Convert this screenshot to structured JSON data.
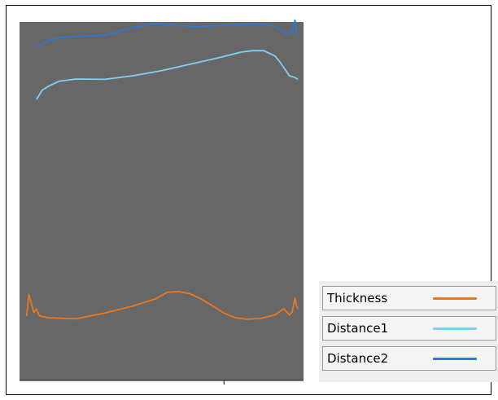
{
  "chart_data": {
    "type": "line",
    "title": "",
    "xlabel": "",
    "ylabel": "",
    "xlim": [
      0,
      100
    ],
    "ylim": [
      0,
      100
    ],
    "grid": false,
    "background": "#676767",
    "legend_position": "bottom-right, outside plot",
    "series": [
      {
        "name": "Thickness",
        "color": "#e87722",
        "x": [
          2.5,
          3.3,
          5,
          6,
          7,
          10,
          20,
          30,
          40,
          48,
          52,
          56,
          60,
          64,
          68,
          72,
          76,
          80,
          85,
          90,
          93,
          95,
          96,
          97,
          97.5,
          98
        ],
        "y": [
          18,
          24,
          19,
          20,
          18,
          17.5,
          17.2,
          18.8,
          20.8,
          22.8,
          24.6,
          24.8,
          24.2,
          22.7,
          20.8,
          18.8,
          17.5,
          17.1,
          17.3,
          18.3,
          20.0,
          18.3,
          19,
          23,
          21,
          20
        ]
      },
      {
        "name": "Distance1",
        "color": "#7fd0f2",
        "x": [
          6,
          8,
          10,
          14,
          20,
          30,
          40,
          50,
          60,
          70,
          78,
          82,
          86,
          90,
          92,
          95,
          97,
          98
        ],
        "y": [
          78.4,
          81.0,
          82.0,
          83.5,
          84.1,
          84.0,
          85.0,
          86.4,
          88.2,
          90.0,
          91.6,
          92.0,
          92.0,
          90.5,
          88.5,
          85.0,
          84.5,
          84.0
        ]
      },
      {
        "name": "Distance2",
        "color": "#2e78d6",
        "x": [
          6,
          8,
          10,
          14,
          20,
          30,
          40,
          48,
          52,
          56,
          62,
          70,
          80,
          86,
          90,
          92,
          94,
          96,
          97,
          97.5,
          98
        ],
        "y": [
          93.0,
          93.8,
          94.8,
          95.6,
          96.0,
          96.3,
          98.5,
          99.6,
          99.3,
          99.0,
          98.7,
          99.0,
          99.4,
          99.3,
          98.9,
          97.8,
          96.6,
          97.5,
          100.5,
          97.0,
          96.2
        ]
      }
    ]
  }
}
